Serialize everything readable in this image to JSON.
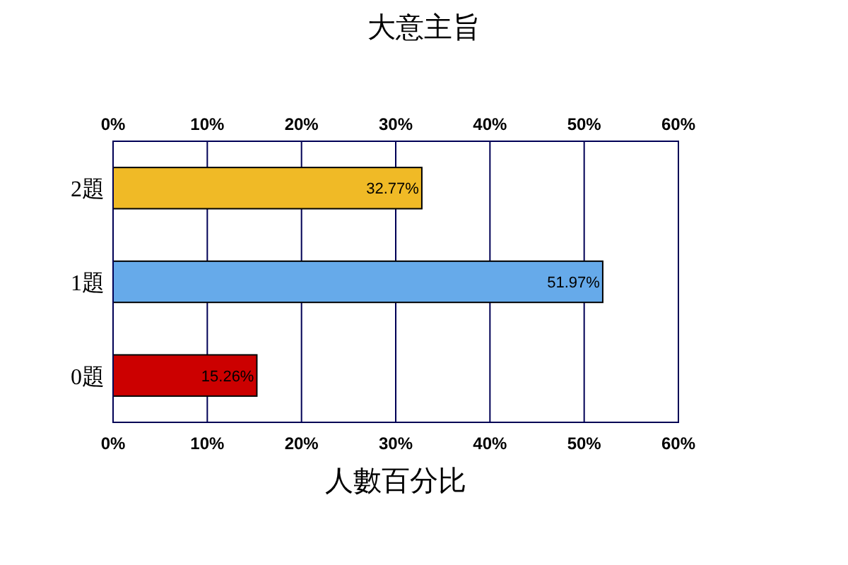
{
  "chart_data": {
    "type": "bar",
    "orientation": "horizontal",
    "title": "大意主旨",
    "xlabel": "人數百分比",
    "categories": [
      "2題",
      "1題",
      "0題"
    ],
    "values": [
      32.77,
      51.97,
      15.26
    ],
    "colors": [
      "#f0ba26",
      "#66aaea",
      "#cc0000"
    ],
    "value_labels": [
      "32.77%",
      "51.97%",
      "15.26%"
    ],
    "xlim": [
      0,
      60
    ],
    "xticks": [
      {
        "value": 0,
        "label": "0%"
      },
      {
        "value": 10,
        "label": "10%"
      },
      {
        "value": 20,
        "label": "20%"
      },
      {
        "value": 30,
        "label": "30%"
      },
      {
        "value": 40,
        "label": "40%"
      },
      {
        "value": 50,
        "label": "50%"
      },
      {
        "value": 60,
        "label": "60%"
      }
    ],
    "x2lim": [
      0,
      60
    ],
    "x2ticks": [
      {
        "value": 0,
        "label": "0%"
      },
      {
        "value": 10,
        "label": "10%"
      },
      {
        "value": 20,
        "label": "20%"
      },
      {
        "value": 30,
        "label": "30%"
      },
      {
        "value": 40,
        "label": "40%"
      },
      {
        "value": 50,
        "label": "50%"
      },
      {
        "value": 60,
        "label": "60%"
      }
    ],
    "grid": "x"
  }
}
